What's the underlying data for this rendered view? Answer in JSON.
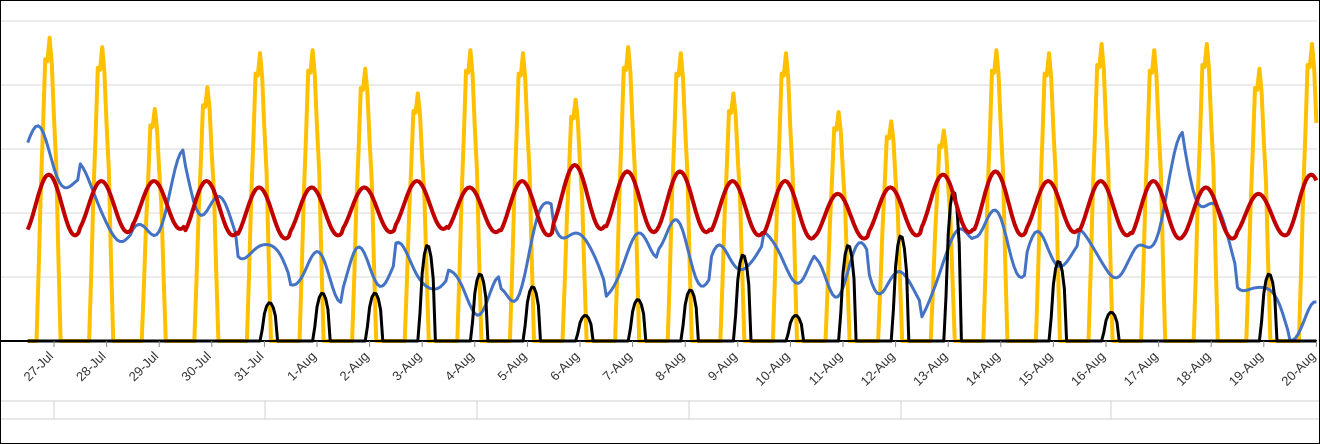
{
  "chart_data": {
    "type": "line",
    "title": "",
    "xlabel": "",
    "ylabel": "",
    "grid": true,
    "legend": "none",
    "x_tick_labels": [
      "27-Jul",
      "28-Jul",
      "29-Jul",
      "30-Jul",
      "31-Jul",
      "1-Aug",
      "2-Aug",
      "3-Aug",
      "4-Aug",
      "5-Aug",
      "6-Aug",
      "7-Aug",
      "8-Aug",
      "9-Aug",
      "10-Aug",
      "11-Aug",
      "12-Aug",
      "13-Aug",
      "14-Aug",
      "15-Aug",
      "16-Aug",
      "17-Aug",
      "18-Aug",
      "19-Aug",
      "20-Aug"
    ],
    "ylim": [
      0,
      100
    ],
    "series": [
      {
        "color": "#FFC000",
        "daily_peaks": [
          98,
          95,
          75,
          82,
          93,
          94,
          88,
          80,
          94,
          93,
          78,
          95,
          93,
          80,
          93,
          74,
          71,
          68,
          94,
          93,
          96,
          94,
          96,
          88,
          96
        ]
      },
      {
        "color": "#C00000",
        "daily_peaks": [
          52,
          50,
          50,
          50,
          48,
          48,
          48,
          50,
          48,
          50,
          55,
          53,
          53,
          50,
          50,
          46,
          48,
          52,
          53,
          50,
          50,
          50,
          48,
          46,
          52
        ],
        "daily_troughs": [
          33,
          34,
          35,
          33,
          32,
          33,
          34,
          35,
          34,
          33,
          35,
          34,
          34,
          33,
          32,
          32,
          33,
          34,
          33,
          34,
          33,
          32,
          32,
          33,
          33
        ]
      },
      {
        "color": "#4472C4",
        "daily_values": [
          62,
          50,
          30,
          53,
          32,
          22,
          20,
          25,
          18,
          12,
          42,
          18,
          34,
          22,
          30,
          20,
          24,
          12,
          38,
          26,
          30,
          22,
          60,
          22,
          5
        ]
      },
      {
        "color": "#000000",
        "daily_peaks": [
          0,
          0,
          0,
          0,
          12,
          15,
          15,
          30,
          21,
          17,
          8,
          13,
          16,
          27,
          8,
          30,
          33,
          47,
          0,
          25,
          9,
          0,
          0,
          21,
          0
        ]
      },
      {
        "color": "#7030A0",
        "daily_values": [
          0,
          0,
          0,
          0,
          0,
          0,
          0,
          0,
          0,
          0,
          0,
          0,
          0,
          0,
          0,
          0,
          0,
          0,
          0,
          0,
          0,
          0,
          0,
          0,
          0
        ]
      }
    ]
  }
}
